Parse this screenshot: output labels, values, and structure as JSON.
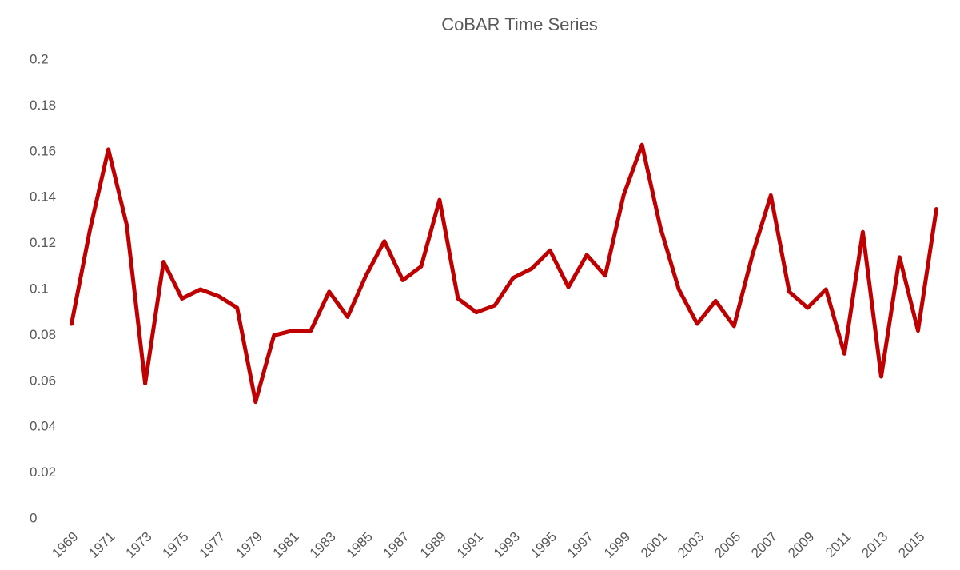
{
  "chart_data": {
    "type": "line",
    "title": "CoBAR Time Series",
    "categories": [
      "1969",
      null,
      "1971",
      null,
      "1973",
      null,
      "1975",
      null,
      "1977",
      null,
      "1979",
      null,
      "1981",
      null,
      "1983",
      null,
      "1985",
      null,
      "1987",
      null,
      "1989",
      null,
      "1991",
      null,
      "1993",
      null,
      "1995",
      null,
      "1997",
      null,
      "1999",
      null,
      "2001",
      null,
      "2003",
      null,
      "2005",
      null,
      "2007",
      null,
      "2009",
      null,
      "2011",
      null,
      "2013",
      null,
      "2015",
      null
    ],
    "series": [
      {
        "color": "#c00000",
        "values": [
          0.085,
          0.126,
          0.161,
          0.128,
          0.059,
          0.112,
          0.096,
          0.1,
          0.097,
          0.092,
          0.051,
          0.08,
          0.082,
          0.082,
          0.099,
          0.088,
          0.106,
          0.121,
          0.104,
          0.11,
          0.139,
          0.096,
          0.09,
          0.093,
          0.105,
          0.109,
          0.117,
          0.101,
          0.115,
          0.106,
          0.141,
          0.163,
          0.127,
          0.1,
          0.085,
          0.095,
          0.084,
          0.115,
          0.141,
          0.099,
          0.092,
          0.1,
          0.072,
          0.125,
          0.062,
          0.114,
          0.082,
          0.135
        ]
      }
    ],
    "ylim": [
      0,
      0.2
    ],
    "yticks": [
      0,
      0.02,
      0.04,
      0.06,
      0.08,
      0.1,
      0.12,
      0.14,
      0.16,
      0.18,
      0.2
    ],
    "grid": false
  }
}
